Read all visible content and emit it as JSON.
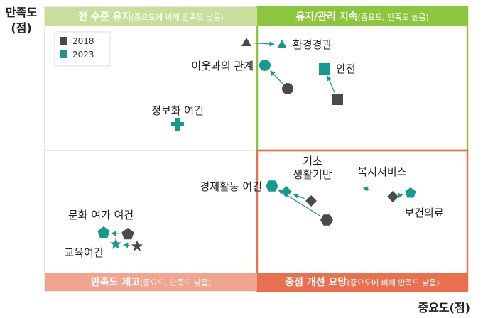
{
  "axis": {
    "y_label": "만족도",
    "y_unit": "(점)",
    "x_label": "중요도(점)"
  },
  "quadrants": [
    {
      "id": "tl",
      "title": "현 수준 유지",
      "note": "(중요도에 비해 만족도 낮음)",
      "color": "#c7df9b",
      "text_color": "#ffffff"
    },
    {
      "id": "tr",
      "title": "유지/관리 지속",
      "note": "(중요도, 만족도 높음)",
      "color": "#8cc63f",
      "text_color": "#ffffff"
    },
    {
      "id": "bl",
      "title": "만족도 제고",
      "note": "(중요도, 만족도 낮음)",
      "color": "#f2a58e",
      "text_color": "#ffffff"
    },
    {
      "id": "br",
      "title": "중점 개선 요망",
      "note": "(중요도에 비해 만족도 낮음)",
      "color": "#e8704f",
      "text_color": "#ffffff"
    }
  ],
  "colors": {
    "s2018": "#4a4a4a",
    "s2023": "#17998f",
    "arrow": "#17998f"
  },
  "chart_data": {
    "type": "scatter",
    "legend": {
      "position": "top-left",
      "entries": [
        "2018",
        "2023"
      ]
    },
    "axes": {
      "x_ticks": false,
      "y_ticks": false
    },
    "points": [
      {
        "label": "환경경관",
        "shape": "triangle",
        "y2018": [
          347,
          60
        ],
        "y2023": [
          397,
          63
        ]
      },
      {
        "label": "이웃과의 관계",
        "shape": "circle",
        "y2018": [
          405,
          125
        ],
        "y2023": [
          373,
          92
        ]
      },
      {
        "label": "안전",
        "shape": "square",
        "y2018": [
          475,
          140
        ],
        "y2023": [
          457,
          97
        ]
      },
      {
        "label": "정보화 여건",
        "shape": "cross",
        "y2018": null,
        "y2023": [
          250,
          175
        ]
      },
      {
        "label": "경제활동 여건",
        "shape": "hexagon",
        "y2018": [
          460,
          310
        ],
        "y2023": [
          383,
          262
        ]
      },
      {
        "label": "기초\n생활기반",
        "shape": "diamond",
        "y2018": [
          438,
          283
        ],
        "y2023": [
          403,
          270
        ]
      },
      {
        "label": "복지서비스",
        "shape": "crescent",
        "y2018": [
          530,
          270
        ],
        "y2023": [
          501,
          262
        ]
      },
      {
        "label": "보건의료",
        "shape": "pentagon-diamond",
        "y2018": [
          553,
          277
        ],
        "y2023": [
          578,
          272
        ]
      },
      {
        "label": "문화 여가 여건",
        "shape": "pentagon",
        "y2018": [
          180,
          330
        ],
        "y2023": [
          146,
          328
        ]
      },
      {
        "label": "교육여건",
        "shape": "star",
        "y2018": [
          193,
          347
        ],
        "y2023": [
          163,
          344
        ]
      }
    ]
  }
}
